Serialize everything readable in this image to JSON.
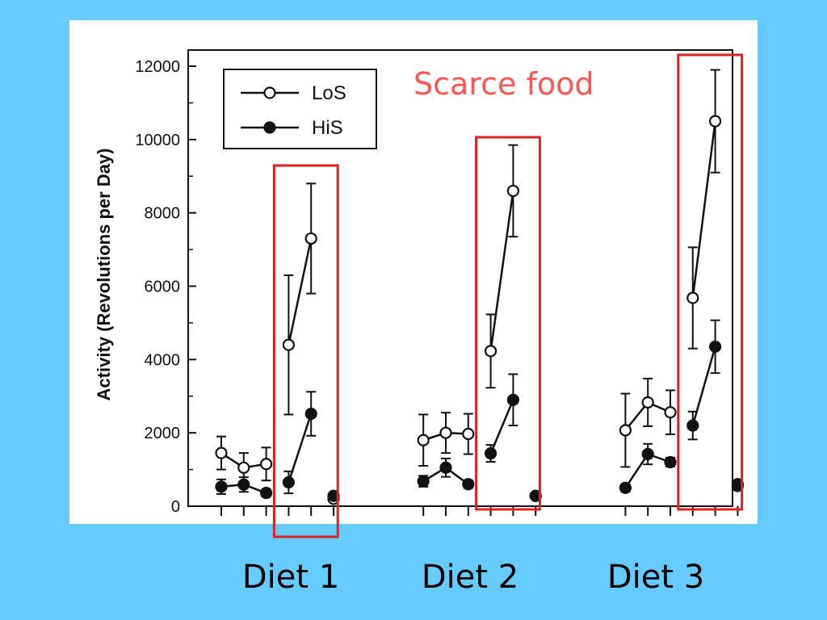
{
  "slide": {
    "background": "#66ccff",
    "annotation": "Scarce food",
    "annotation_color": "#ff5555",
    "highlight_color": "#dd2222",
    "diet_labels": [
      "Diet 1",
      "Diet 2",
      "Diet 3"
    ]
  },
  "chart_data": {
    "type": "scatter",
    "title": "",
    "ylabel": "Activity (Revolutions per Day)",
    "xlabel": "",
    "ylim": [
      0,
      12000
    ],
    "yticks": [
      0,
      2000,
      4000,
      6000,
      8000,
      10000,
      12000
    ],
    "legend": {
      "placement": "top-left",
      "entries": [
        "LoS",
        "HiS"
      ]
    },
    "grid": false,
    "x_note": "sequential measurement days, 3 groups",
    "series": [
      {
        "name": "LoS",
        "marker": "open-circle",
        "segments": [
          [
            {
              "x": 1,
              "y": 1450,
              "err": 450
            },
            {
              "x": 2,
              "y": 1050,
              "err": 400
            },
            {
              "x": 3,
              "y": 1150,
              "err": 450
            }
          ],
          [
            {
              "x": 4,
              "y": 4400,
              "err": 1900
            },
            {
              "x": 5,
              "y": 7300,
              "err": 1500
            }
          ],
          [
            {
              "x": 6,
              "y": 200,
              "err": 0
            }
          ],
          [
            {
              "x": 10,
              "y": 1800,
              "err": 700
            },
            {
              "x": 11,
              "y": 2000,
              "err": 550
            },
            {
              "x": 12,
              "y": 1970,
              "err": 550
            }
          ],
          [
            {
              "x": 13,
              "y": 4230,
              "err": 1000
            },
            {
              "x": 14,
              "y": 8600,
              "err": 1250
            }
          ],
          [
            {
              "x": 15,
              "y": 280,
              "err": 0
            }
          ],
          [
            {
              "x": 19,
              "y": 2070,
              "err": 1000
            },
            {
              "x": 20,
              "y": 2830,
              "err": 650
            },
            {
              "x": 21,
              "y": 2560,
              "err": 600
            }
          ],
          [
            {
              "x": 22,
              "y": 5680,
              "err": 1380
            },
            {
              "x": 23,
              "y": 10500,
              "err": 1400
            }
          ],
          [
            {
              "x": 24,
              "y": 550,
              "err": 0
            }
          ]
        ]
      },
      {
        "name": "HiS",
        "marker": "filled-circle",
        "segments": [
          [
            {
              "x": 1,
              "y": 530,
              "err": 200
            },
            {
              "x": 2,
              "y": 590,
              "err": 200
            },
            {
              "x": 3,
              "y": 360,
              "err": 100
            }
          ],
          [
            {
              "x": 4,
              "y": 650,
              "err": 300
            },
            {
              "x": 5,
              "y": 2520,
              "err": 600
            }
          ],
          [
            {
              "x": 6,
              "y": 280,
              "err": 0
            }
          ],
          [
            {
              "x": 10,
              "y": 680,
              "err": 150
            },
            {
              "x": 11,
              "y": 1050,
              "err": 250
            },
            {
              "x": 12,
              "y": 600,
              "err": 100
            }
          ],
          [
            {
              "x": 13,
              "y": 1440,
              "err": 230
            },
            {
              "x": 14,
              "y": 2900,
              "err": 700
            }
          ],
          [
            {
              "x": 15,
              "y": 280,
              "err": 0
            }
          ],
          [
            {
              "x": 19,
              "y": 500,
              "err": 100
            },
            {
              "x": 20,
              "y": 1420,
              "err": 280
            },
            {
              "x": 21,
              "y": 1200,
              "err": 120
            }
          ],
          [
            {
              "x": 22,
              "y": 2200,
              "err": 380
            },
            {
              "x": 23,
              "y": 4350,
              "err": 720
            }
          ],
          [
            {
              "x": 24,
              "y": 600,
              "err": 0
            }
          ]
        ]
      }
    ],
    "x_ticks": [
      1,
      2,
      3,
      4,
      5,
      6,
      10,
      11,
      12,
      13,
      14,
      15,
      19,
      20,
      21,
      22,
      23,
      24
    ],
    "highlight_ranges": [
      [
        4,
        5
      ],
      [
        13,
        14
      ],
      [
        22,
        23
      ]
    ]
  }
}
